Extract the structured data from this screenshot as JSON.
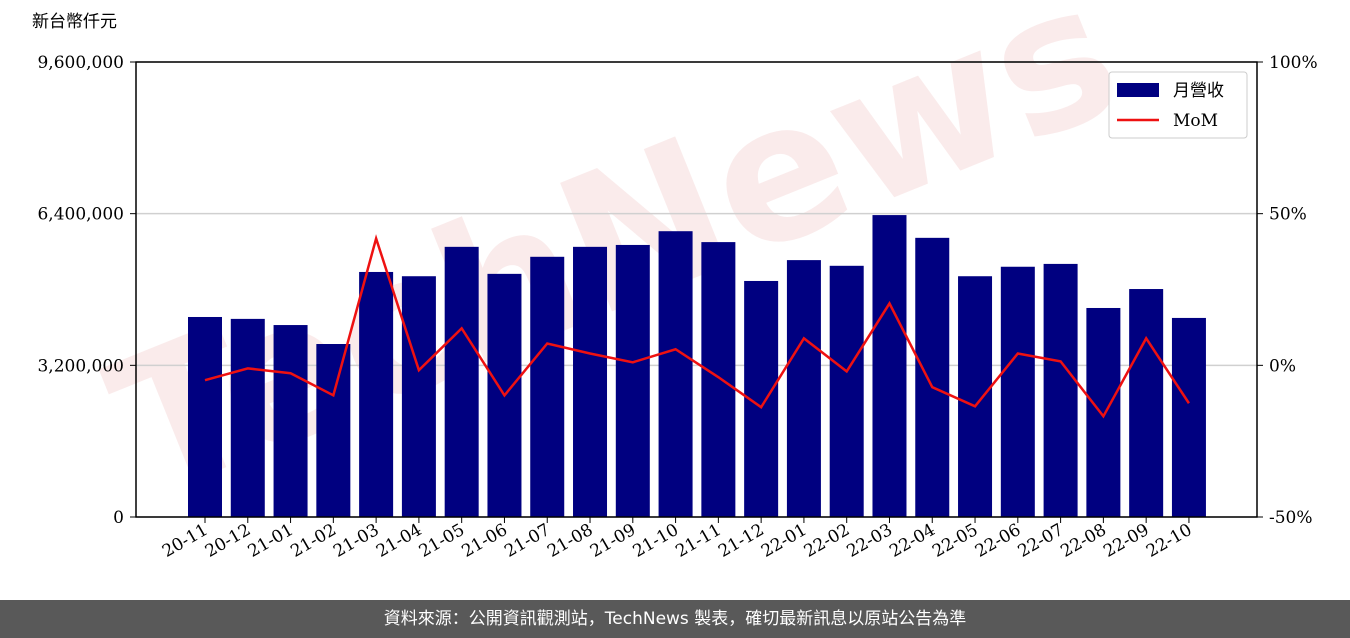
{
  "chart_data": {
    "type": "bar-line",
    "y_label": "新台幣仟元",
    "watermark": "TechNews",
    "categories": [
      "20-11",
      "20-12",
      "21-01",
      "21-02",
      "21-03",
      "21-04",
      "21-05",
      "21-06",
      "21-07",
      "21-08",
      "21-09",
      "21-10",
      "21-11",
      "21-12",
      "22-01",
      "22-02",
      "22-03",
      "22-04",
      "22-05",
      "22-06",
      "22-07",
      "22-08",
      "22-09",
      "22-10"
    ],
    "series": [
      {
        "name": "月營收",
        "type": "bar",
        "color": "#000080",
        "values": [
          4220000,
          4180000,
          4050000,
          3650000,
          5170000,
          5080000,
          5700000,
          5130000,
          5490000,
          5700000,
          5740000,
          6030000,
          5800000,
          4980000,
          5420000,
          5300000,
          6370000,
          5890000,
          5080000,
          5280000,
          5340000,
          4410000,
          4810000,
          4200000
        ]
      },
      {
        "name": "MoM",
        "type": "line",
        "axis": "y2",
        "color": "#ee1111",
        "values": [
          -4.9,
          -1.0,
          -2.6,
          -9.9,
          41.8,
          -1.6,
          12.2,
          -9.9,
          7.2,
          3.9,
          1.0,
          5.3,
          -3.9,
          -13.8,
          8.9,
          -2.0,
          20.4,
          -7.2,
          -13.5,
          3.9,
          1.3,
          -16.8,
          8.9,
          -12.5
        ]
      }
    ],
    "ylim": [
      0,
      9600000
    ],
    "yticks": [
      0,
      {
        "value": 3200000,
        "label": "3,200,000"
      },
      {
        "value": 6400000,
        "label": "6,400,000"
      },
      {
        "value": 9600000,
        "label": "9,600,000"
      }
    ],
    "y2lim": [
      -50,
      100
    ],
    "y2ticks": [
      {
        "value": -50,
        "label": "-50%"
      },
      {
        "value": 0,
        "label": "0%"
      },
      {
        "value": 50,
        "label": "50%"
      },
      {
        "value": 100,
        "label": "100%"
      }
    ],
    "grid": true,
    "legend": "upper right"
  },
  "footer": "資料來源：公開資訊觀測站，TechNews 製表，確切最新訊息以原站公告為準"
}
